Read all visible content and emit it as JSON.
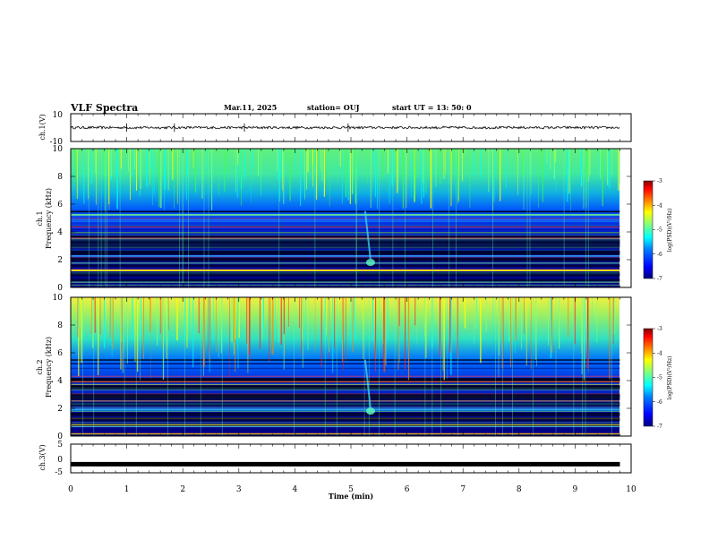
{
  "header": {
    "title": "VLF Spectra",
    "date": "Mar.11, 2025",
    "station": "station= OUJ",
    "start": "start  UT =   13: 50: 0"
  },
  "colors": {
    "waveform": "#000000",
    "colormap": [
      "#000080",
      "#0000ff",
      "#0080ff",
      "#00ffff",
      "#80ff80",
      "#ffff00",
      "#ff8000",
      "#ff0000",
      "#800000"
    ]
  },
  "chart_data": [
    {
      "type": "line",
      "panel": "ch1-waveform",
      "ylabel": "ch.1(V)",
      "ylim": [
        -10,
        10
      ],
      "yticks": [
        "10",
        "-10"
      ],
      "x": [
        0,
        1,
        2,
        3,
        4,
        5,
        6,
        7,
        8,
        9,
        9.8
      ],
      "values": [
        0,
        0,
        0,
        0,
        0,
        0,
        0,
        0,
        0,
        0,
        0
      ]
    },
    {
      "type": "heatmap",
      "panel": "ch1-spectrogram",
      "ylabel": [
        "ch.1",
        "Frequency  (kHz)"
      ],
      "ylim": [
        0,
        10
      ],
      "yticks": [
        "0",
        "2",
        "4",
        "6",
        "8",
        "10"
      ],
      "colorbar": {
        "label": "log(PSD)(V²/Hz)",
        "range": [
          -7,
          -3
        ],
        "ticks": [
          "-3",
          "-4",
          "-5",
          "-6",
          "-7"
        ]
      }
    },
    {
      "type": "heatmap",
      "panel": "ch2-spectrogram",
      "ylabel": [
        "ch.2",
        "Frequency  (kHz)"
      ],
      "ylim": [
        0,
        10
      ],
      "yticks": [
        "0",
        "2",
        "4",
        "6",
        "8",
        "10"
      ],
      "colorbar": {
        "label": "log(PSD)(V²/Hz)",
        "range": [
          -7,
          -3
        ],
        "ticks": [
          "-3",
          "-4",
          "-5",
          "-6",
          "-7"
        ]
      }
    },
    {
      "type": "line",
      "panel": "ch3-waveform",
      "ylabel": "ch.3(V)",
      "ylim": [
        -5,
        5
      ],
      "yticks": [
        "5",
        "0",
        "-5"
      ],
      "x": [
        0,
        9.8
      ],
      "values": [
        -2,
        -2
      ]
    }
  ],
  "xaxis": {
    "label": "Time  (min)",
    "range": [
      0,
      10
    ],
    "ticks": [
      "0",
      "1",
      "2",
      "3",
      "4",
      "5",
      "6",
      "7",
      "8",
      "9",
      "10"
    ]
  }
}
